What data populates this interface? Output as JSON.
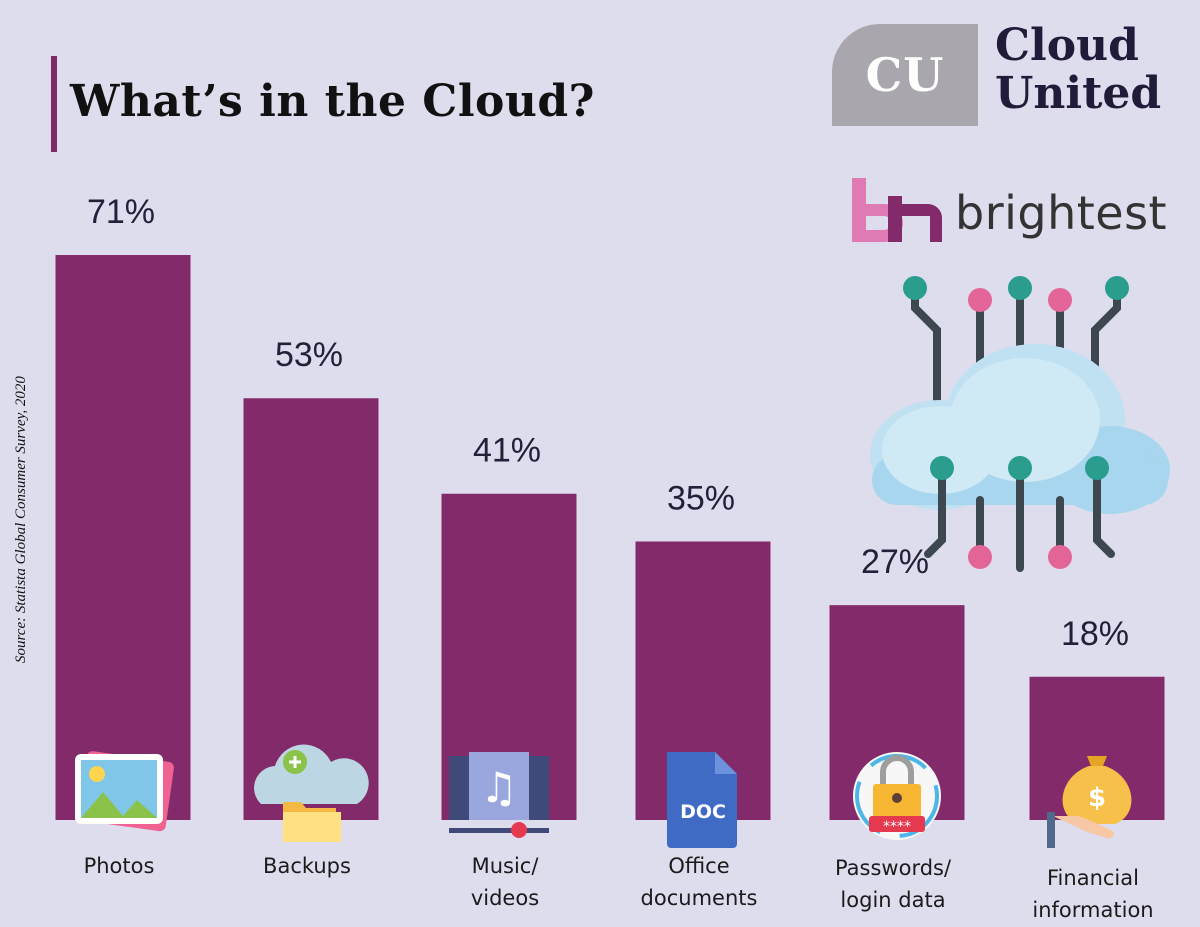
{
  "header": {
    "title": "What’s in the Cloud?",
    "source": "Source: Statista Global Consumer Survey, 2020"
  },
  "brand": {
    "cu_logo_text": "CU",
    "cu_name_line1": "Cloud",
    "cu_name_line2": "United",
    "bt_name": "brightest"
  },
  "colors": {
    "bar": "#832b6a",
    "background": "#dedded",
    "accent_teal": "#2a9d8f",
    "accent_pink": "#e36597",
    "cloud": "#c9e5f2"
  },
  "chart_data": {
    "type": "bar",
    "title": "What’s in the Cloud?",
    "categories": [
      "Photos",
      "Backups",
      "Music/\nvideos",
      "Office\ndocuments",
      "Passwords/\nlogin data",
      "Financial\ninformation"
    ],
    "values": [
      71,
      53,
      41,
      35,
      27,
      18
    ],
    "value_labels": [
      "71%",
      "53%",
      "41%",
      "35%",
      "27%",
      "18%"
    ],
    "icons": [
      "photo-icon",
      "cloud-backup-icon",
      "music-video-icon",
      "doc-file-icon",
      "password-lock-icon",
      "money-bag-icon"
    ],
    "unit": "%",
    "ylim": [
      0,
      71
    ],
    "grid": false,
    "legend": "none"
  }
}
